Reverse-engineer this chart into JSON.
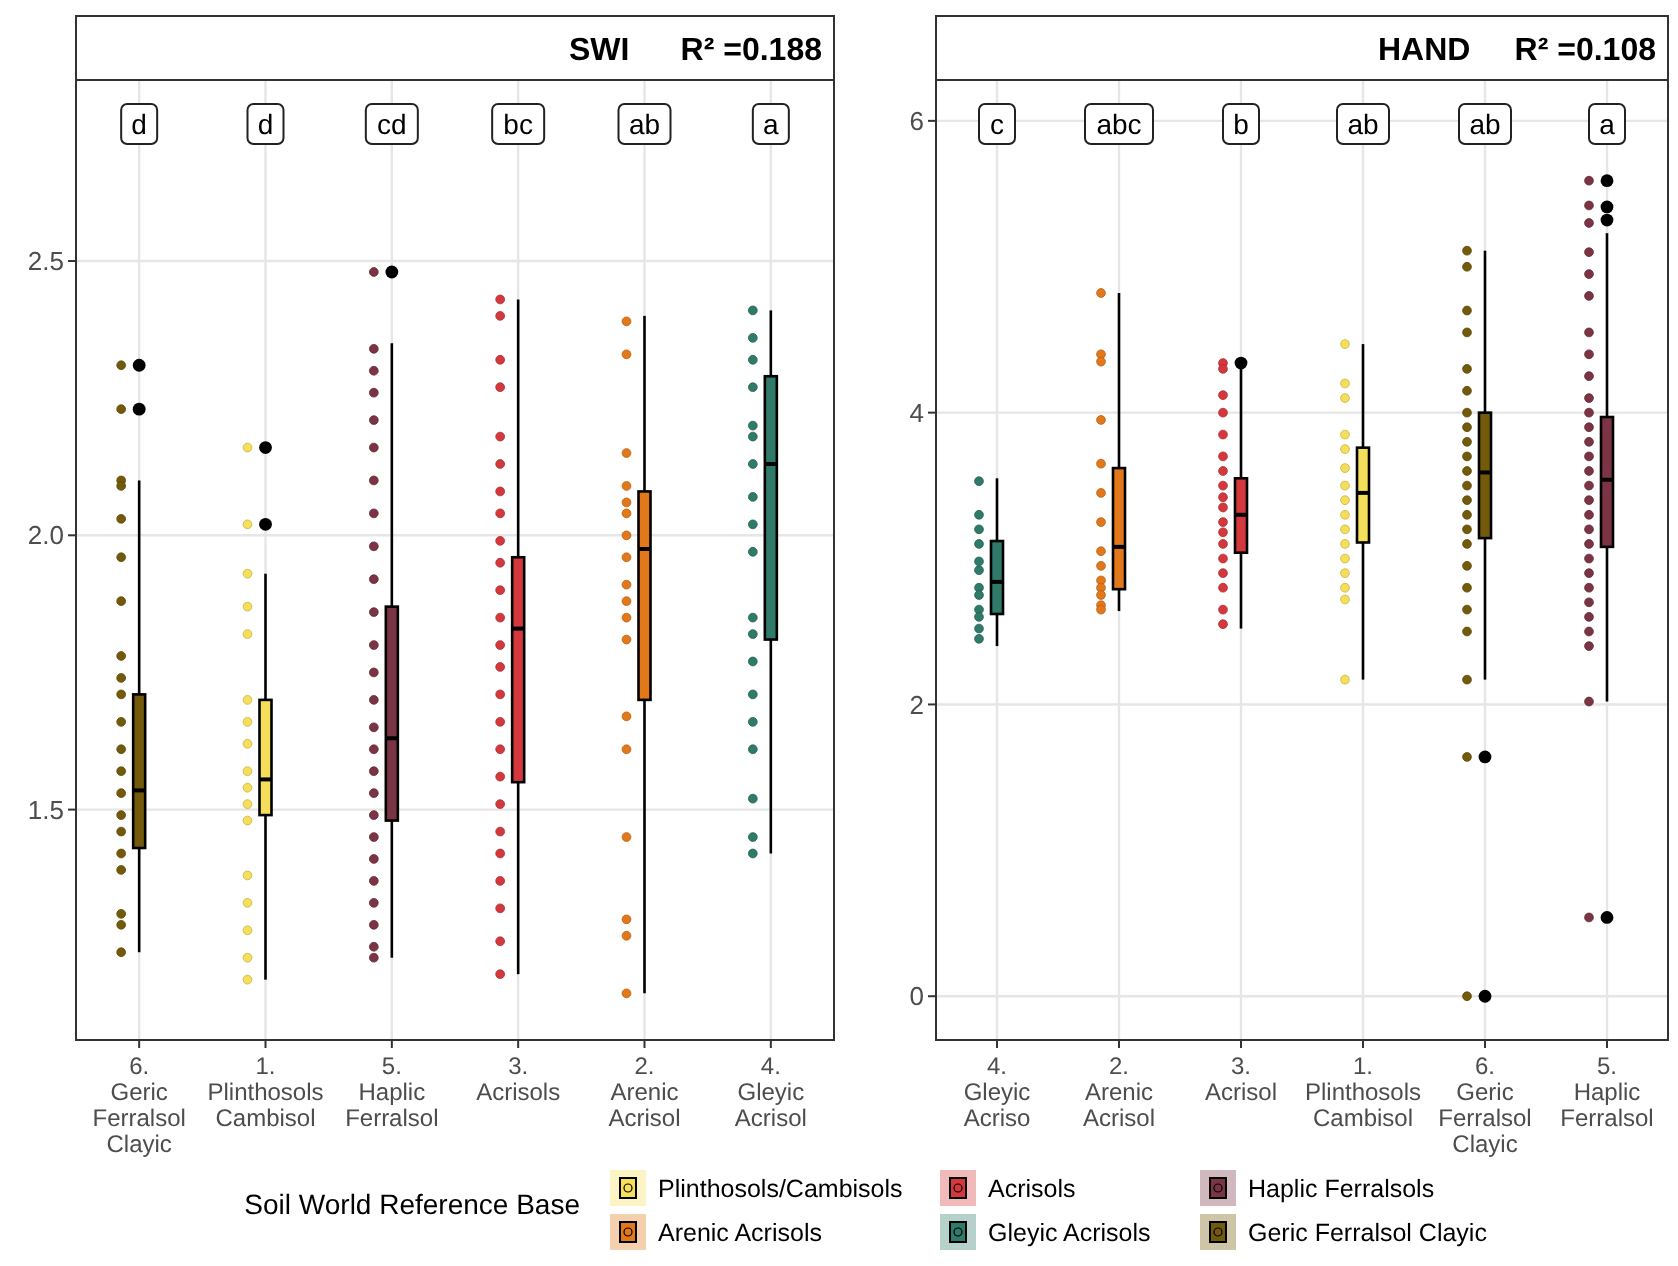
{
  "chart_data": [
    {
      "type": "box",
      "title": "SWI",
      "subtitle": "R² =0.188",
      "legend_title": "Soil World Reference Base",
      "legend": "bottom",
      "grid": true,
      "categories": [
        "6.\nGeric\nFerralsol\nClayic",
        "1.\nPlinthosols\nCambisol",
        "5.\nHaplic\nFerralsol",
        "3.\nAcrisols",
        "2.\nArenic\nAcrisol",
        "4.\nGleyic\nAcrisol"
      ],
      "colors": [
        "#735a0a",
        "#f5df5a",
        "#7a3444",
        "#d4383d",
        "#e3781a",
        "#2f7a68"
      ],
      "boxes": [
        {
          "low": 1.24,
          "q1": 1.43,
          "median": 1.535,
          "q3": 1.71,
          "high": 2.1,
          "outliers": [
            2.31,
            2.23
          ]
        },
        {
          "low": 1.19,
          "q1": 1.49,
          "median": 1.555,
          "q3": 1.7,
          "high": 1.93,
          "outliers": [
            2.16,
            2.02
          ]
        },
        {
          "low": 1.23,
          "q1": 1.48,
          "median": 1.63,
          "q3": 1.87,
          "high": 2.35,
          "outliers": [
            2.48
          ]
        },
        {
          "low": 1.2,
          "q1": 1.55,
          "median": 1.83,
          "q3": 1.96,
          "high": 2.43
        },
        {
          "low": 1.165,
          "q1": 1.7,
          "median": 1.975,
          "q3": 2.08,
          "high": 2.4
        },
        {
          "low": 1.42,
          "q1": 1.81,
          "median": 2.13,
          "q3": 2.29,
          "high": 2.41
        }
      ],
      "series": [
        {
          "type": "scatter",
          "name": "Plinthosols/Cambisols",
          "color": "#f5df5a",
          "x": [
            "1.\nPlinthosols\nCambisol",
            "1.\nPlinthosols\nCambisol",
            "1.\nPlinthosols\nCambisol",
            "1.\nPlinthosols\nCambisol",
            "1.\nPlinthosols\nCambisol",
            "1.\nPlinthosols\nCambisol",
            "1.\nPlinthosols\nCambisol",
            "1.\nPlinthosols\nCambisol",
            "1.\nPlinthosols\nCambisol",
            "1.\nPlinthosols\nCambisol",
            "1.\nPlinthosols\nCambisol",
            "1.\nPlinthosols\nCambisol",
            "1.\nPlinthosols\nCambisol",
            "1.\nPlinthosols\nCambisol",
            "1.\nPlinthosols\nCambisol",
            "1.\nPlinthosols\nCambisol",
            "1.\nPlinthosols\nCambisol"
          ],
          "values": [
            2.16,
            2.02,
            1.93,
            1.87,
            1.82,
            1.7,
            1.66,
            1.62,
            1.57,
            1.54,
            1.51,
            1.48,
            1.38,
            1.33,
            1.28,
            1.23,
            1.19
          ]
        },
        {
          "type": "scatter",
          "name": "Arenic Acrisols",
          "color": "#e3781a",
          "x": [
            "2.\nArenic\nAcrisol",
            "2.\nArenic\nAcrisol",
            "2.\nArenic\nAcrisol",
            "2.\nArenic\nAcrisol",
            "2.\nArenic\nAcrisol",
            "2.\nArenic\nAcrisol",
            "2.\nArenic\nAcrisol",
            "2.\nArenic\nAcrisol",
            "2.\nArenic\nAcrisol",
            "2.\nArenic\nAcrisol",
            "2.\nArenic\nAcrisol",
            "2.\nArenic\nAcrisol",
            "2.\nArenic\nAcrisol",
            "2.\nArenic\nAcrisol",
            "2.\nArenic\nAcrisol",
            "2.\nArenic\nAcrisol",
            "2.\nArenic\nAcrisol",
            "2.\nArenic\nAcrisol"
          ],
          "values": [
            2.39,
            2.33,
            2.15,
            2.09,
            2.06,
            2.04,
            2.0,
            1.96,
            1.91,
            1.88,
            1.85,
            1.81,
            1.67,
            1.61,
            1.45,
            1.3,
            1.27,
            1.165
          ]
        },
        {
          "type": "scatter",
          "name": "Acrisols",
          "color": "#d4383d",
          "x": [
            "3.\nAcrisols",
            "3.\nAcrisols",
            "3.\nAcrisols",
            "3.\nAcrisols",
            "3.\nAcrisols",
            "3.\nAcrisols",
            "3.\nAcrisols",
            "3.\nAcrisols",
            "3.\nAcrisols",
            "3.\nAcrisols",
            "3.\nAcrisols",
            "3.\nAcrisols",
            "3.\nAcrisols",
            "3.\nAcrisols",
            "3.\nAcrisols",
            "3.\nAcrisols",
            "3.\nAcrisols",
            "3.\nAcrisols",
            "3.\nAcrisols",
            "3.\nAcrisols",
            "3.\nAcrisols",
            "3.\nAcrisols",
            "3.\nAcrisols",
            "3.\nAcrisols",
            "3.\nAcrisols"
          ],
          "values": [
            2.43,
            2.4,
            2.32,
            2.27,
            2.18,
            2.13,
            2.08,
            2.04,
            1.99,
            1.95,
            1.9,
            1.85,
            1.8,
            1.76,
            1.71,
            1.66,
            1.61,
            1.56,
            1.51,
            1.46,
            1.42,
            1.37,
            1.32,
            1.26,
            1.2
          ]
        },
        {
          "type": "scatter",
          "name": "Gleyic Acrisols",
          "color": "#2f7a68",
          "x": [
            "4.\nGleyic\nAcrisol",
            "4.\nGleyic\nAcrisol",
            "4.\nGleyic\nAcrisol",
            "4.\nGleyic\nAcrisol",
            "4.\nGleyic\nAcrisol",
            "4.\nGleyic\nAcrisol",
            "4.\nGleyic\nAcrisol",
            "4.\nGleyic\nAcrisol",
            "4.\nGleyic\nAcrisol",
            "4.\nGleyic\nAcrisol",
            "4.\nGleyic\nAcrisol",
            "4.\nGleyic\nAcrisol",
            "4.\nGleyic\nAcrisol",
            "4.\nGleyic\nAcrisol",
            "4.\nGleyic\nAcrisol",
            "4.\nGleyic\nAcrisol",
            "4.\nGleyic\nAcrisol",
            "4.\nGleyic\nAcrisol",
            "4.\nGleyic\nAcrisol"
          ],
          "values": [
            2.41,
            2.36,
            2.32,
            2.27,
            2.2,
            2.18,
            2.13,
            2.07,
            2.02,
            1.97,
            1.85,
            1.82,
            1.77,
            1.71,
            1.66,
            1.61,
            1.52,
            1.45,
            1.42
          ]
        },
        {
          "type": "scatter",
          "name": "Haplic Ferralsols",
          "color": "#7a3444",
          "x": [
            "5.\nHaplic\nFerralsol",
            "5.\nHaplic\nFerralsol",
            "5.\nHaplic\nFerralsol",
            "5.\nHaplic\nFerralsol",
            "5.\nHaplic\nFerralsol",
            "5.\nHaplic\nFerralsol",
            "5.\nHaplic\nFerralsol",
            "5.\nHaplic\nFerralsol",
            "5.\nHaplic\nFerralsol",
            "5.\nHaplic\nFerralsol",
            "5.\nHaplic\nFerralsol",
            "5.\nHaplic\nFerralsol",
            "5.\nHaplic\nFerralsol",
            "5.\nHaplic\nFerralsol",
            "5.\nHaplic\nFerralsol",
            "5.\nHaplic\nFerralsol",
            "5.\nHaplic\nFerralsol",
            "5.\nHaplic\nFerralsol",
            "5.\nHaplic\nFerralsol",
            "5.\nHaplic\nFerralsol",
            "5.\nHaplic\nFerralsol",
            "5.\nHaplic\nFerralsol",
            "5.\nHaplic\nFerralsol",
            "5.\nHaplic\nFerralsol",
            "5.\nHaplic\nFerralsol",
            "5.\nHaplic\nFerralsol"
          ],
          "values": [
            2.48,
            2.34,
            2.3,
            2.26,
            2.21,
            2.16,
            2.1,
            2.04,
            1.98,
            1.92,
            1.86,
            1.8,
            1.75,
            1.7,
            1.65,
            1.61,
            1.57,
            1.53,
            1.49,
            1.45,
            1.41,
            1.37,
            1.33,
            1.29,
            1.25,
            1.23
          ]
        },
        {
          "type": "scatter",
          "name": "Geric Ferralsol Clayic",
          "color": "#735a0a",
          "x": [
            "6.\nGeric\nFerralsol\nClayic",
            "6.\nGeric\nFerralsol\nClayic",
            "6.\nGeric\nFerralsol\nClayic",
            "6.\nGeric\nFerralsol\nClayic",
            "6.\nGeric\nFerralsol\nClayic",
            "6.\nGeric\nFerralsol\nClayic",
            "6.\nGeric\nFerralsol\nClayic",
            "6.\nGeric\nFerralsol\nClayic",
            "6.\nGeric\nFerralsol\nClayic",
            "6.\nGeric\nFerralsol\nClayic",
            "6.\nGeric\nFerralsol\nClayic",
            "6.\nGeric\nFerralsol\nClayic",
            "6.\nGeric\nFerralsol\nClayic",
            "6.\nGeric\nFerralsol\nClayic",
            "6.\nGeric\nFerralsol\nClayic",
            "6.\nGeric\nFerralsol\nClayic",
            "6.\nGeric\nFerralsol\nClayic",
            "6.\nGeric\nFerralsol\nClayic",
            "6.\nGeric\nFerralsol\nClayic",
            "6.\nGeric\nFerralsol\nClayic",
            "6.\nGeric\nFerralsol\nClayic"
          ],
          "values": [
            2.31,
            2.23,
            2.1,
            2.09,
            2.03,
            1.96,
            1.88,
            1.78,
            1.74,
            1.71,
            1.66,
            1.61,
            1.57,
            1.53,
            1.49,
            1.46,
            1.42,
            1.39,
            1.31,
            1.29,
            1.24
          ]
        }
      ],
      "ylim": [
        1.08,
        2.83
      ],
      "yticks": [
        1.5,
        {
          "value": 2,
          "label": "2.0"
        },
        2.5
      ],
      "annotations": [
        "d",
        "d",
        "cd",
        "bc",
        "ab",
        "a"
      ]
    },
    {
      "type": "box",
      "title": "HAND",
      "subtitle": "R² =0.108",
      "grid": true,
      "categories": [
        "4.\nGleyic\nAcriso",
        "2.\nArenic\nAcrisol",
        "3.\nAcrisol",
        "1.\nPlinthosols\nCambisol",
        "6.\nGeric\nFerralsol\nClayic",
        "5.\nHaplic\nFerralsol"
      ],
      "colors": [
        "#2f7a68",
        "#e3781a",
        "#d4383d",
        "#f5df5a",
        "#735a0a",
        "#7a3444"
      ],
      "boxes": [
        {
          "low": 2.4,
          "q1": 2.62,
          "median": 2.84,
          "q3": 3.12,
          "high": 3.55
        },
        {
          "low": 2.64,
          "q1": 2.79,
          "median": 3.08,
          "q3": 3.62,
          "high": 4.82
        },
        {
          "low": 2.52,
          "q1": 3.04,
          "median": 3.3,
          "q3": 3.55,
          "high": 4.3,
          "outliers": [
            4.34
          ]
        },
        {
          "low": 2.17,
          "q1": 3.11,
          "median": 3.45,
          "q3": 3.76,
          "high": 4.47
        },
        {
          "low": 2.17,
          "q1": 3.14,
          "median": 3.59,
          "q3": 4.0,
          "high": 5.11,
          "outliers": [
            1.64,
            0
          ]
        },
        {
          "low": 2.02,
          "q1": 3.08,
          "median": 3.54,
          "q3": 3.97,
          "high": 5.23,
          "outliers": [
            5.59,
            5.41,
            5.32,
            0.54
          ]
        }
      ],
      "series": [
        {
          "type": "scatter",
          "color": "#2f7a68",
          "x": [
            "4.\nGleyic\nAcriso",
            "4.\nGleyic\nAcriso",
            "4.\nGleyic\nAcriso",
            "4.\nGleyic\nAcriso",
            "4.\nGleyic\nAcriso",
            "4.\nGleyic\nAcriso",
            "4.\nGleyic\nAcriso",
            "4.\nGleyic\nAcriso",
            "4.\nGleyic\nAcriso",
            "4.\nGleyic\nAcriso",
            "4.\nGleyic\nAcriso",
            "4.\nGleyic\nAcriso"
          ],
          "values": [
            3.53,
            3.3,
            3.2,
            3.1,
            2.98,
            2.92,
            2.8,
            2.75,
            2.65,
            2.6,
            2.52,
            2.45
          ]
        },
        {
          "type": "scatter",
          "color": "#e3781a",
          "x": [
            "2.\nArenic\nAcrisol",
            "2.\nArenic\nAcrisol",
            "2.\nArenic\nAcrisol",
            "2.\nArenic\nAcrisol",
            "2.\nArenic\nAcrisol",
            "2.\nArenic\nAcrisol",
            "2.\nArenic\nAcrisol",
            "2.\nArenic\nAcrisol",
            "2.\nArenic\nAcrisol",
            "2.\nArenic\nAcrisol",
            "2.\nArenic\nAcrisol",
            "2.\nArenic\nAcrisol",
            "2.\nArenic\nAcrisol",
            "2.\nArenic\nAcrisol"
          ],
          "values": [
            4.82,
            4.4,
            4.35,
            3.95,
            3.65,
            3.45,
            3.25,
            3.05,
            2.95,
            2.85,
            2.8,
            2.75,
            2.68,
            2.65
          ]
        },
        {
          "type": "scatter",
          "color": "#d4383d",
          "x": [
            "3.\nAcrisol",
            "3.\nAcrisol",
            "3.\nAcrisol",
            "3.\nAcrisol",
            "3.\nAcrisol",
            "3.\nAcrisol",
            "3.\nAcrisol",
            "3.\nAcrisol",
            "3.\nAcrisol",
            "3.\nAcrisol",
            "3.\nAcrisol",
            "3.\nAcrisol",
            "3.\nAcrisol",
            "3.\nAcrisol",
            "3.\nAcrisol",
            "3.\nAcrisol",
            "3.\nAcrisol",
            "3.\nAcrisol"
          ],
          "values": [
            4.34,
            4.3,
            4.12,
            4.0,
            3.85,
            3.7,
            3.6,
            3.5,
            3.42,
            3.35,
            3.25,
            3.18,
            3.1,
            3.0,
            2.9,
            2.8,
            2.65,
            2.55
          ]
        },
        {
          "type": "scatter",
          "color": "#f5df5a",
          "x": [
            "1.\nPlinthosols\nCambisol",
            "1.\nPlinthosols\nCambisol",
            "1.\nPlinthosols\nCambisol",
            "1.\nPlinthosols\nCambisol",
            "1.\nPlinthosols\nCambisol",
            "1.\nPlinthosols\nCambisol",
            "1.\nPlinthosols\nCambisol",
            "1.\nPlinthosols\nCambisol",
            "1.\nPlinthosols\nCambisol",
            "1.\nPlinthosols\nCambisol",
            "1.\nPlinthosols\nCambisol",
            "1.\nPlinthosols\nCambisol",
            "1.\nPlinthosols\nCambisol",
            "1.\nPlinthosols\nCambisol",
            "1.\nPlinthosols\nCambisol",
            "1.\nPlinthosols\nCambisol"
          ],
          "values": [
            4.47,
            4.2,
            4.1,
            3.85,
            3.75,
            3.62,
            3.5,
            3.4,
            3.3,
            3.2,
            3.1,
            3.0,
            2.9,
            2.8,
            2.72,
            2.17
          ]
        },
        {
          "type": "scatter",
          "color": "#735a0a",
          "x": [
            "6.\nGeric\nFerralsol\nClayic",
            "6.\nGeric\nFerralsol\nClayic",
            "6.\nGeric\nFerralsol\nClayic",
            "6.\nGeric\nFerralsol\nClayic",
            "6.\nGeric\nFerralsol\nClayic",
            "6.\nGeric\nFerralsol\nClayic",
            "6.\nGeric\nFerralsol\nClayic",
            "6.\nGeric\nFerralsol\nClayic",
            "6.\nGeric\nFerralsol\nClayic",
            "6.\nGeric\nFerralsol\nClayic",
            "6.\nGeric\nFerralsol\nClayic",
            "6.\nGeric\nFerralsol\nClayic",
            "6.\nGeric\nFerralsol\nClayic",
            "6.\nGeric\nFerralsol\nClayic",
            "6.\nGeric\nFerralsol\nClayic",
            "6.\nGeric\nFerralsol\nClayic",
            "6.\nGeric\nFerralsol\nClayic",
            "6.\nGeric\nFerralsol\nClayic",
            "6.\nGeric\nFerralsol\nClayic",
            "6.\nGeric\nFerralsol\nClayic",
            "6.\nGeric\nFerralsol\nClayic",
            "6.\nGeric\nFerralsol\nClayic",
            "6.\nGeric\nFerralsol\nClayic"
          ],
          "values": [
            5.11,
            5.0,
            4.7,
            4.55,
            4.3,
            4.15,
            4.0,
            3.9,
            3.8,
            3.7,
            3.6,
            3.5,
            3.4,
            3.3,
            3.2,
            3.1,
            2.95,
            2.8,
            2.65,
            2.5,
            2.17,
            1.64,
            0
          ]
        },
        {
          "type": "scatter",
          "color": "#7a3444",
          "x": [
            "5.\nHaplic\nFerralsol",
            "5.\nHaplic\nFerralsol",
            "5.\nHaplic\nFerralsol",
            "5.\nHaplic\nFerralsol",
            "5.\nHaplic\nFerralsol",
            "5.\nHaplic\nFerralsol",
            "5.\nHaplic\nFerralsol",
            "5.\nHaplic\nFerralsol",
            "5.\nHaplic\nFerralsol",
            "5.\nHaplic\nFerralsol",
            "5.\nHaplic\nFerralsol",
            "5.\nHaplic\nFerralsol",
            "5.\nHaplic\nFerralsol",
            "5.\nHaplic\nFerralsol",
            "5.\nHaplic\nFerralsol",
            "5.\nHaplic\nFerralsol",
            "5.\nHaplic\nFerralsol",
            "5.\nHaplic\nFerralsol",
            "5.\nHaplic\nFerralsol",
            "5.\nHaplic\nFerralsol",
            "5.\nHaplic\nFerralsol",
            "5.\nHaplic\nFerralsol",
            "5.\nHaplic\nFerralsol",
            "5.\nHaplic\nFerralsol",
            "5.\nHaplic\nFerralsol",
            "5.\nHaplic\nFerralsol",
            "5.\nHaplic\nFerralsol",
            "5.\nHaplic\nFerralsol",
            "5.\nHaplic\nFerralsol"
          ],
          "values": [
            5.59,
            5.42,
            5.3,
            5.1,
            4.95,
            4.8,
            4.55,
            4.4,
            4.25,
            4.1,
            4.0,
            3.9,
            3.8,
            3.7,
            3.6,
            3.5,
            3.4,
            3.3,
            3.2,
            3.1,
            3.0,
            2.9,
            2.8,
            2.7,
            2.6,
            2.5,
            2.4,
            2.02,
            0.54
          ]
        }
      ],
      "ylim": [
        -0.3,
        6.28
      ],
      "yticks": [
        0,
        2,
        4,
        6
      ],
      "annotations": [
        "c",
        "abc",
        "b",
        "ab",
        "ab",
        "a"
      ]
    }
  ]
}
